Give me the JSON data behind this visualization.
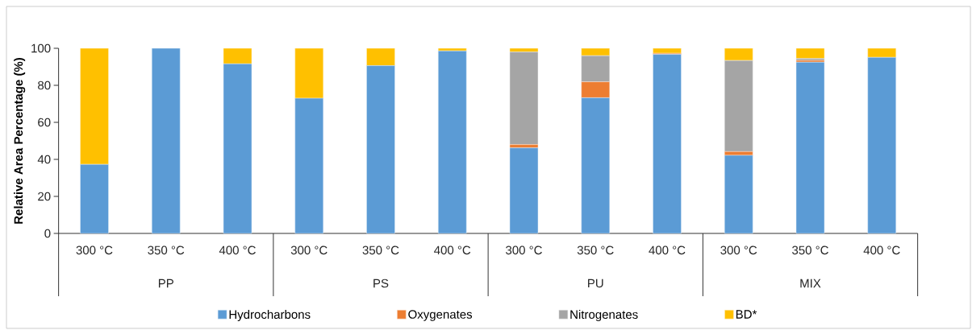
{
  "chart_data": {
    "type": "bar",
    "stacked": true,
    "ylabel": "Relative Area Percentage (%)",
    "categories": [
      "300 °C",
      "350 °C",
      "400 °C",
      "300 °C",
      "350 °C",
      "400 °C",
      "300 °C",
      "350 °C",
      "400 °C",
      "300 °C",
      "350 °C",
      "400 °C"
    ],
    "annotations": [
      "PP",
      "PS",
      "PU",
      "MIX"
    ],
    "series": [
      {
        "name": "Hydrocharbons",
        "color": "#5b9bd5",
        "values": [
          37.3,
          100,
          91.6,
          73.0,
          90.6,
          98.6,
          46.2,
          73.3,
          96.7,
          42.2,
          92.5,
          95.1
        ]
      },
      {
        "name": "Oxygenates",
        "color": "#ed7d31",
        "values": [
          0,
          0,
          0,
          0,
          0,
          0,
          1.8,
          8.6,
          0.6,
          2.0,
          1.0,
          0
        ]
      },
      {
        "name": "Nitrogenates",
        "color": "#a5a5a5",
        "values": [
          0,
          0,
          0,
          0,
          0,
          0,
          50.0,
          14.1,
          0,
          49.2,
          1.0,
          0
        ]
      },
      {
        "name": "BD*",
        "color": "#ffc000",
        "values": [
          62.7,
          0,
          8.4,
          27.0,
          9.4,
          1.4,
          2.0,
          4.0,
          2.7,
          6.6,
          5.5,
          4.9
        ]
      }
    ],
    "ylim": [
      0,
      100
    ],
    "yticks": [
      0,
      20,
      40,
      60,
      80,
      100
    ],
    "legend": "bottom"
  }
}
